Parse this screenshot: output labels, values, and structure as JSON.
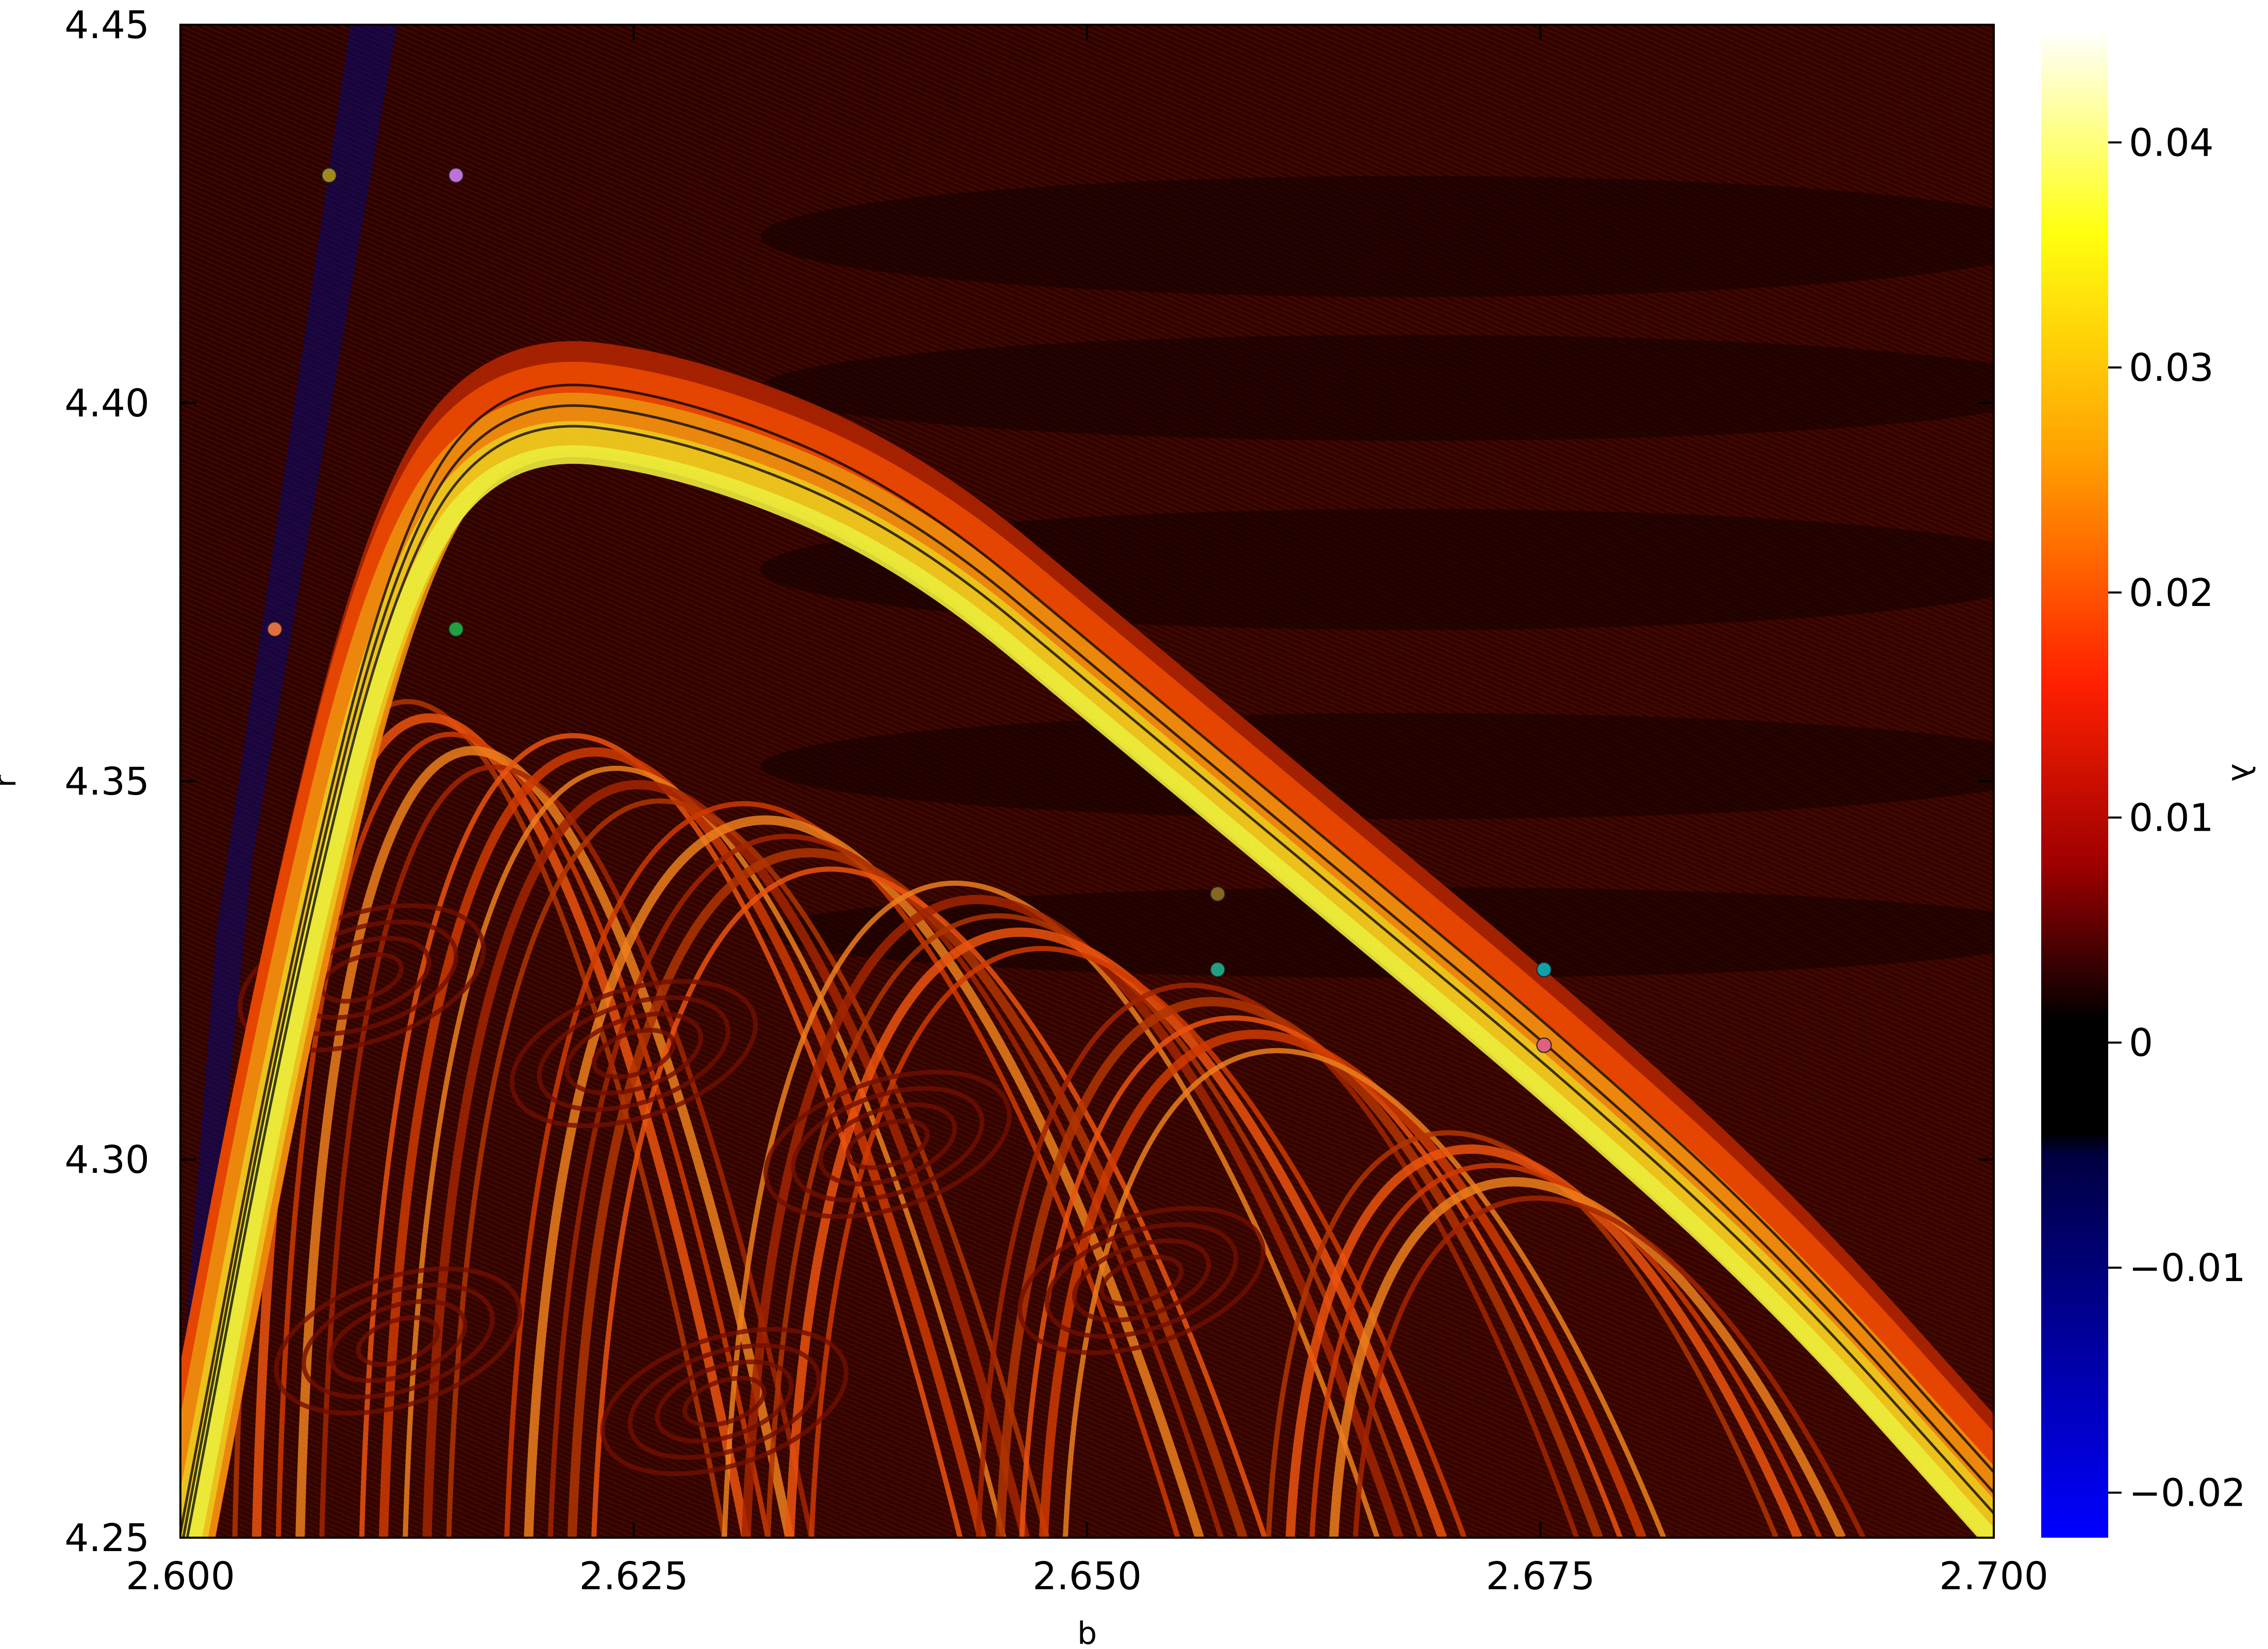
{
  "chart_data": {
    "type": "heatmap",
    "title": "",
    "xlabel": "b",
    "ylabel": "r",
    "colorbar_label": "λ",
    "xlim": [
      2.6,
      2.7
    ],
    "ylim": [
      4.25,
      4.45
    ],
    "x_ticks": [
      2.6,
      2.625,
      2.65,
      2.675,
      2.7
    ],
    "x_tick_labels": [
      "2.600",
      "2.625",
      "2.650",
      "2.675",
      "2.700"
    ],
    "y_ticks": [
      4.25,
      4.3,
      4.35,
      4.4,
      4.45
    ],
    "y_tick_labels": [
      "4.25",
      "4.30",
      "4.35",
      "4.40",
      "4.45"
    ],
    "colorbar": {
      "range": [
        -0.022,
        0.045
      ],
      "ticks": [
        -0.02,
        -0.01,
        0,
        0.01,
        0.02,
        0.03,
        0.04
      ],
      "tick_labels": [
        "−0.02",
        "−0.01",
        "0",
        "0.01",
        "0.02",
        "0.03",
        "0.04"
      ],
      "colors": [
        {
          "value": -0.022,
          "color": "#0000ff"
        },
        {
          "value": -0.005,
          "color": "#000040"
        },
        {
          "value": -0.004,
          "color": "#000000"
        },
        {
          "value": 0.001,
          "color": "#000000"
        },
        {
          "value": 0.008,
          "color": "#a00000"
        },
        {
          "value": 0.016,
          "color": "#ff2000"
        },
        {
          "value": 0.026,
          "color": "#ffa000"
        },
        {
          "value": 0.036,
          "color": "#ffff10"
        },
        {
          "value": 0.045,
          "color": "#ffffff"
        }
      ]
    },
    "markers": [
      {
        "b": 2.6082,
        "r": 4.4301,
        "color": "#a08a20"
      },
      {
        "b": 2.6152,
        "r": 4.4301,
        "color": "#c070d8"
      },
      {
        "b": 2.6052,
        "r": 4.3701,
        "color": "#e07040"
      },
      {
        "b": 2.6152,
        "r": 4.3701,
        "color": "#20a040"
      },
      {
        "b": 2.6572,
        "r": 4.3351,
        "color": "#886622"
      },
      {
        "b": 2.6572,
        "r": 4.3251,
        "color": "#20a080"
      },
      {
        "b": 2.6752,
        "r": 4.3251,
        "color": "#10a0a8"
      },
      {
        "b": 2.6752,
        "r": 4.3151,
        "color": "#e06080"
      }
    ]
  }
}
